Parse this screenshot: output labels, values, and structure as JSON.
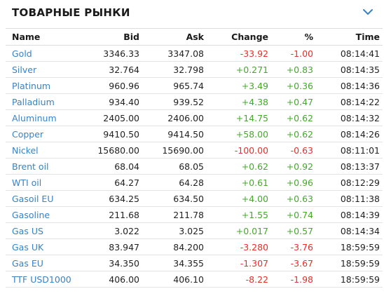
{
  "header": {
    "title": "ТОВАРНЫЕ РЫНКИ",
    "chevron_icon": "chevron-down-icon",
    "accent_color": "#3a82c4"
  },
  "table": {
    "columns": [
      "Name",
      "Bid",
      "Ask",
      "Change",
      "%",
      "Time"
    ],
    "rows": [
      {
        "name": "Gold",
        "bid": "3346.33",
        "ask": "3347.08",
        "change": "-33.92",
        "pct": "-1.00",
        "time": "08:14:41"
      },
      {
        "name": "Silver",
        "bid": "32.764",
        "ask": "32.798",
        "change": "+0.271",
        "pct": "+0.83",
        "time": "08:14:35"
      },
      {
        "name": "Platinum",
        "bid": "960.96",
        "ask": "965.74",
        "change": "+3.49",
        "pct": "+0.36",
        "time": "08:14:36"
      },
      {
        "name": "Palladium",
        "bid": "934.40",
        "ask": "939.52",
        "change": "+4.38",
        "pct": "+0.47",
        "time": "08:14:22"
      },
      {
        "name": "Aluminum",
        "bid": "2405.00",
        "ask": "2406.00",
        "change": "+14.75",
        "pct": "+0.62",
        "time": "08:14:32"
      },
      {
        "name": "Copper",
        "bid": "9410.50",
        "ask": "9414.50",
        "change": "+58.00",
        "pct": "+0.62",
        "time": "08:14:26"
      },
      {
        "name": "Nickel",
        "bid": "15680.00",
        "ask": "15690.00",
        "change": "-100.00",
        "pct": "-0.63",
        "time": "08:11:01"
      },
      {
        "name": "Brent oil",
        "bid": "68.04",
        "ask": "68.05",
        "change": "+0.62",
        "pct": "+0.92",
        "time": "08:13:37"
      },
      {
        "name": "WTI oil",
        "bid": "64.27",
        "ask": "64.28",
        "change": "+0.61",
        "pct": "+0.96",
        "time": "08:12:29"
      },
      {
        "name": "Gasoil EU",
        "bid": "634.25",
        "ask": "634.50",
        "change": "+4.00",
        "pct": "+0.63",
        "time": "08:11:38"
      },
      {
        "name": "Gasoline",
        "bid": "211.68",
        "ask": "211.78",
        "change": "+1.55",
        "pct": "+0.74",
        "time": "08:14:39"
      },
      {
        "name": "Gas US",
        "bid": "3.022",
        "ask": "3.025",
        "change": "+0.017",
        "pct": "+0.57",
        "time": "08:14:34"
      },
      {
        "name": "Gas UK",
        "bid": "83.947",
        "ask": "84.200",
        "change": "-3.280",
        "pct": "-3.76",
        "time": "18:59:59"
      },
      {
        "name": "Gas EU",
        "bid": "34.350",
        "ask": "34.355",
        "change": "-1.307",
        "pct": "-3.67",
        "time": "18:59:59"
      },
      {
        "name": "TTF USD1000",
        "bid": "406.00",
        "ask": "406.10",
        "change": "-8.22",
        "pct": "-1.98",
        "time": "18:59:59"
      }
    ],
    "colors": {
      "positive": "#45a82c",
      "negative": "#e0312b",
      "link": "#3a82c4"
    }
  }
}
